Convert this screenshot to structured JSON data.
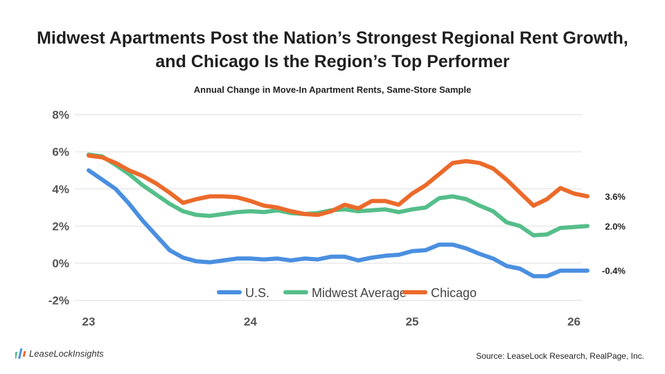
{
  "title_line1": "Midwest Apartments Post the Nation’s Strongest Regional Rent Growth,",
  "title_line2": "and Chicago Is the Region’s Top Performer",
  "source": "Source: LeaseLock Research, RealPage, Inc.",
  "logo_text": "LeaseLockInsights",
  "chart_data": {
    "type": "line",
    "title": "Midwest Apartments Post the Nation’s Strongest Regional Rent Growth, and Chicago Is the Region’s Top Performer",
    "subtitle": "Annual Change in Move-In Apartment Rents, Same-Store Sample",
    "xlabel": "",
    "ylabel": "",
    "x_ticks": [
      "23",
      "24",
      "25",
      "26"
    ],
    "y_ticks": [
      "8%",
      "6%",
      "4%",
      "2%",
      "0%",
      "-2%"
    ],
    "ylim": [
      -2,
      8
    ],
    "x_start": "Jan 2023",
    "x_step": "month",
    "grid": true,
    "legend": "bottom-center",
    "series": [
      {
        "name": "U.S.",
        "color": "#4a8fe0",
        "end_label": "-0.4%",
        "values": [
          5.0,
          4.5,
          4.0,
          3.2,
          2.3,
          1.5,
          0.7,
          0.3,
          0.1,
          0.05,
          0.15,
          0.25,
          0.25,
          0.2,
          0.25,
          0.15,
          0.25,
          0.2,
          0.35,
          0.35,
          0.15,
          0.3,
          0.4,
          0.45,
          0.65,
          0.7,
          1.0,
          1.0,
          0.8,
          0.5,
          0.25,
          -0.15,
          -0.3,
          -0.7,
          -0.7,
          -0.4,
          -0.4,
          -0.4
        ]
      },
      {
        "name": "Midwest Average",
        "color": "#55be8a",
        "end_label": "2.0%",
        "values": [
          5.85,
          5.75,
          5.3,
          4.8,
          4.2,
          3.7,
          3.2,
          2.8,
          2.6,
          2.55,
          2.65,
          2.75,
          2.8,
          2.75,
          2.85,
          2.7,
          2.65,
          2.7,
          2.85,
          2.9,
          2.8,
          2.85,
          2.9,
          2.75,
          2.9,
          3.0,
          3.5,
          3.6,
          3.45,
          3.1,
          2.8,
          2.2,
          2.0,
          1.5,
          1.55,
          1.9,
          1.95,
          2.0
        ]
      },
      {
        "name": "Chicago",
        "color": "#ec6a2a",
        "end_label": "3.6%",
        "values": [
          5.8,
          5.7,
          5.4,
          5.0,
          4.7,
          4.3,
          3.8,
          3.25,
          3.45,
          3.6,
          3.6,
          3.55,
          3.35,
          3.1,
          3.0,
          2.8,
          2.65,
          2.6,
          2.8,
          3.15,
          2.95,
          3.35,
          3.35,
          3.15,
          3.75,
          4.2,
          4.8,
          5.4,
          5.5,
          5.4,
          5.1,
          4.5,
          3.8,
          3.1,
          3.45,
          4.05,
          3.75,
          3.6
        ]
      }
    ]
  }
}
